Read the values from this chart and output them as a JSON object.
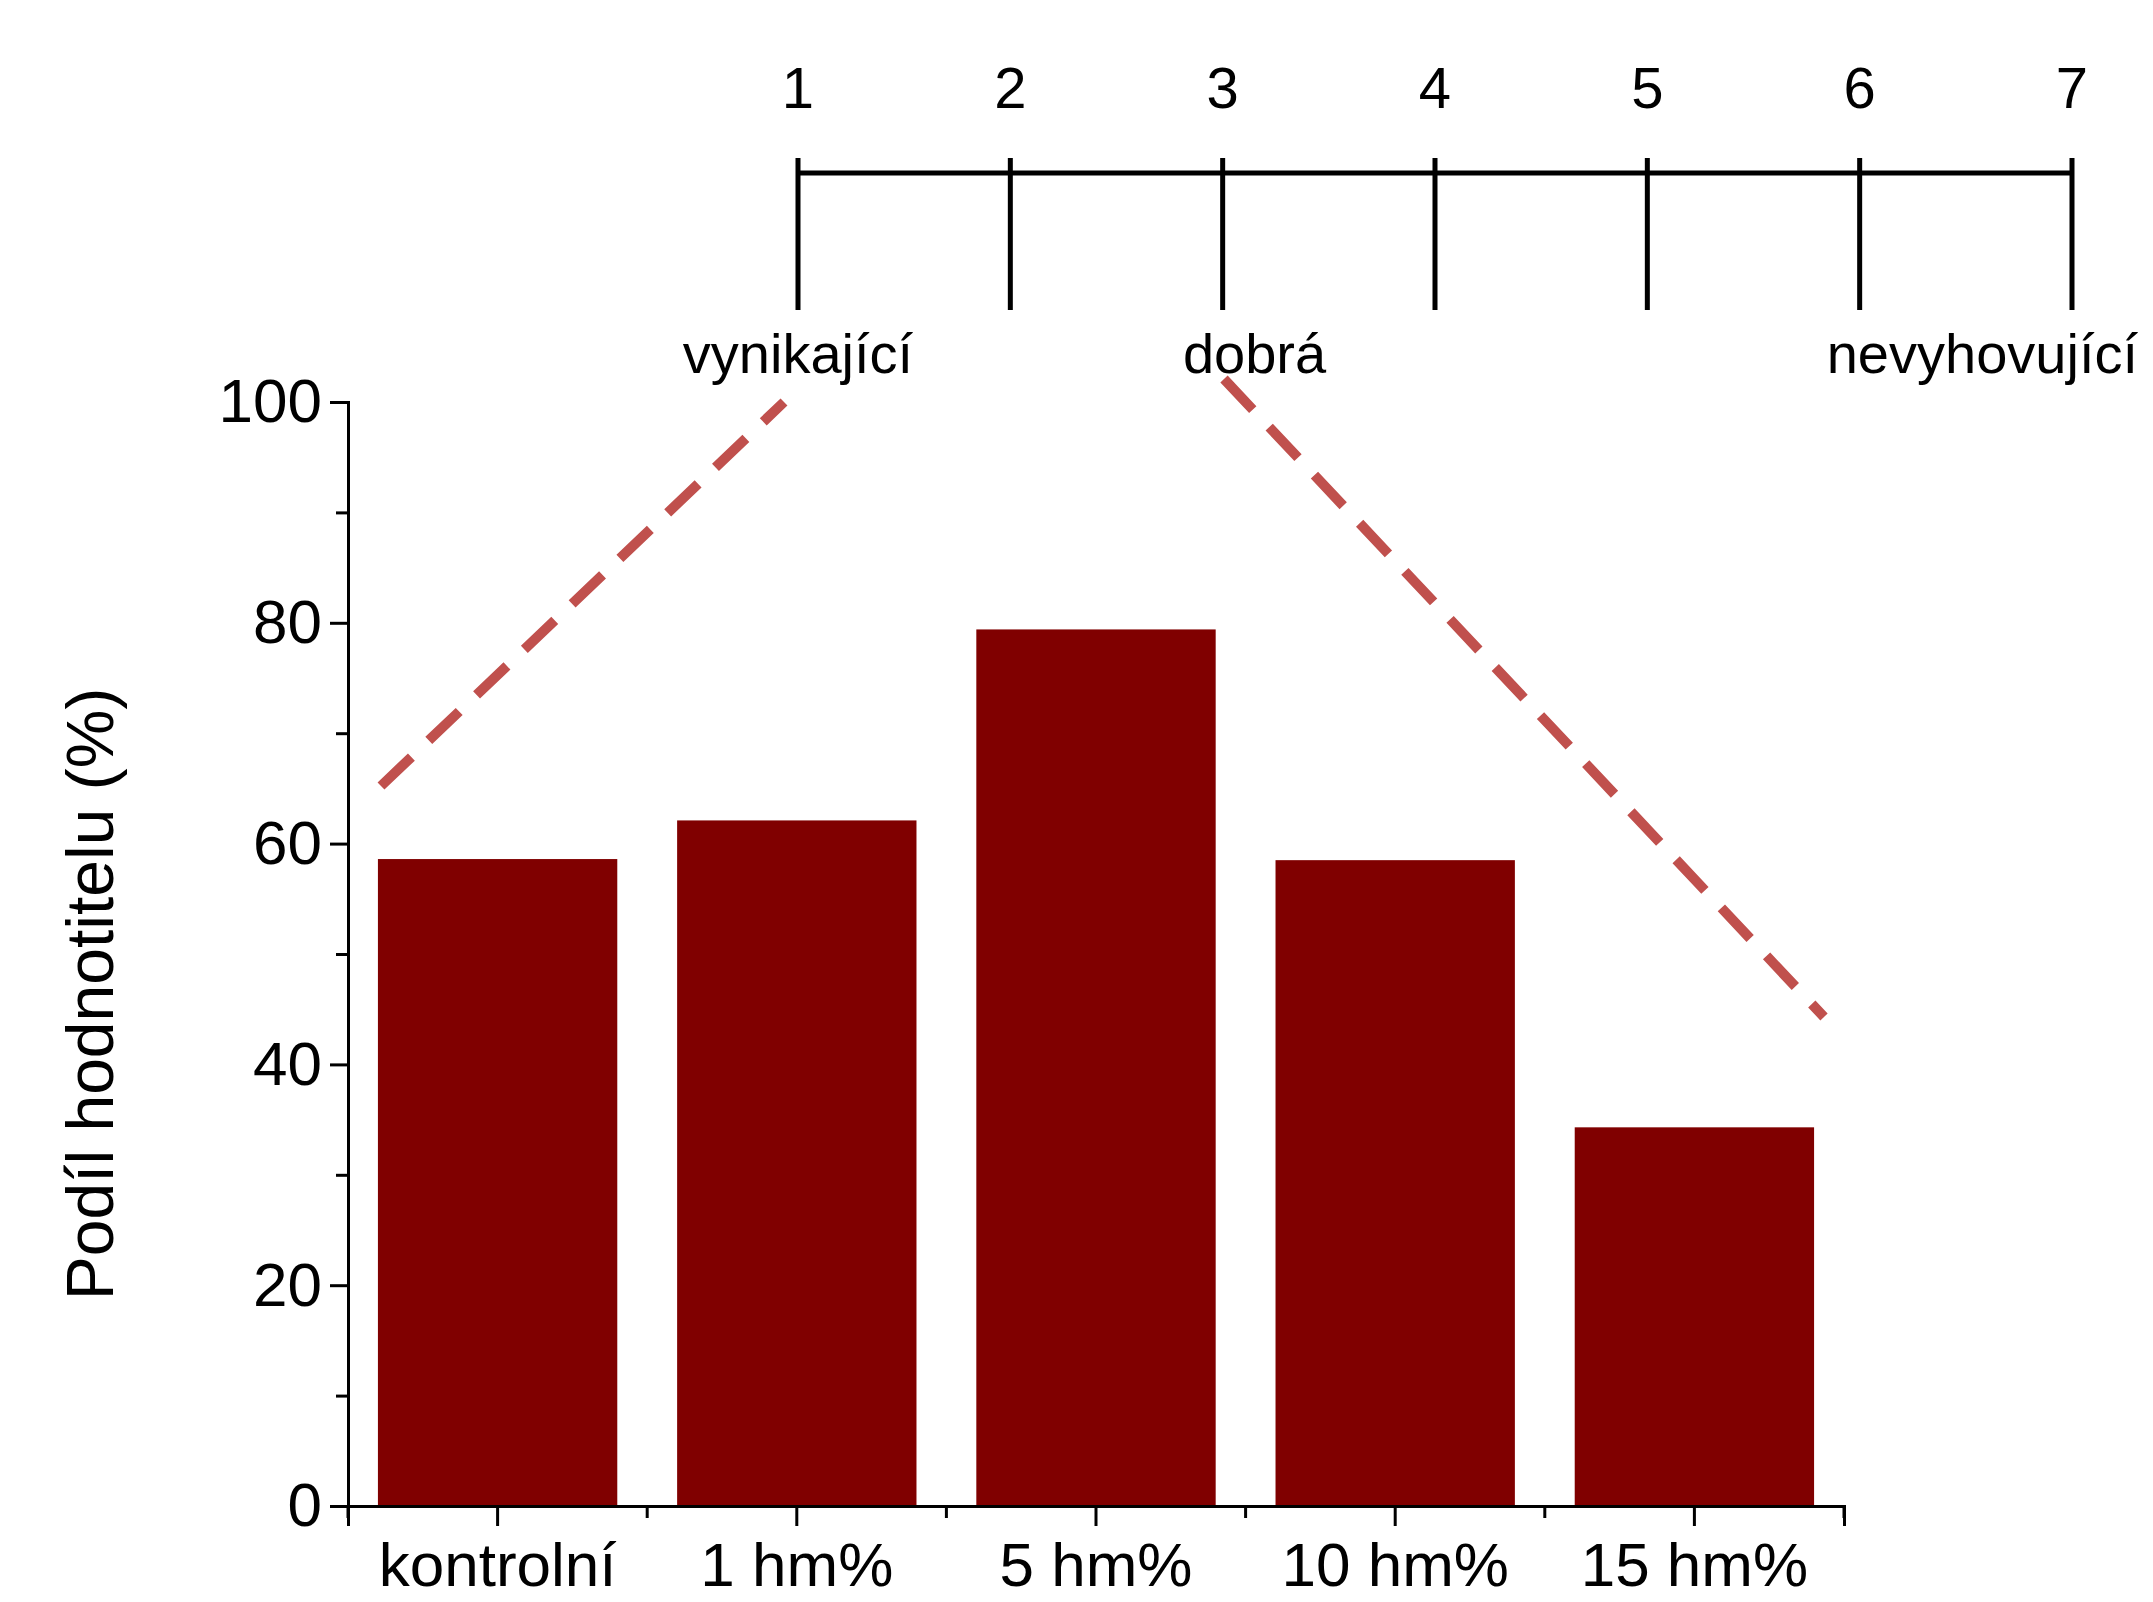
{
  "chart_data": {
    "type": "bar",
    "ylabel": "Podíl hodnotitelu (%)",
    "categories": [
      "kontrolní",
      "1 hm%",
      "5 hm%",
      "10 hm%",
      "15 hm%"
    ],
    "values": [
      58.6,
      62.1,
      79.4,
      58.5,
      34.3
    ],
    "color": "#800000",
    "ylim": [
      0,
      100
    ],
    "yticks": [
      0,
      {
        "value": 10,
        "label": null
      },
      20,
      {
        "value": 30,
        "label": null
      },
      40,
      {
        "value": 50,
        "label": null
      },
      60,
      {
        "value": 70,
        "label": null
      },
      80,
      {
        "value": 90,
        "label": null
      },
      100
    ],
    "x2lim": [
      1,
      7
    ],
    "x2ticks": [
      1,
      2,
      3,
      4,
      5,
      6,
      7
    ],
    "annotations": [
      "vynikající",
      "dobrá",
      "nevyhovující"
    ],
    "grid": false
  }
}
